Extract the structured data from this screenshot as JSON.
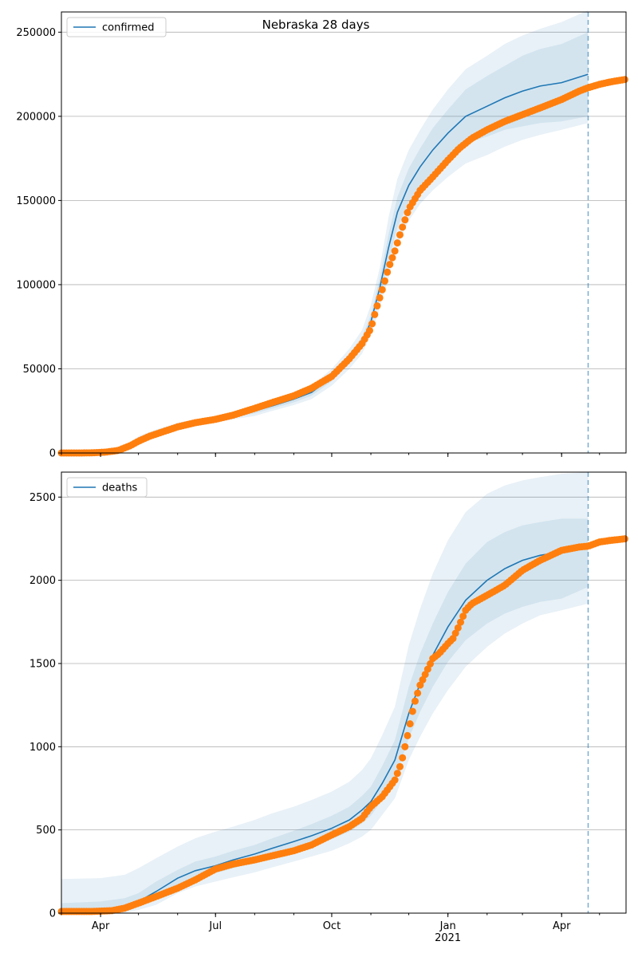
{
  "chart_data": [
    {
      "type": "line",
      "title": "Nebraska 28 days",
      "series": [
        {
          "name": "confirmed"
        }
      ],
      "forecast_marker_date": "2021-04-22",
      "xlim": [
        "2020-03-01",
        "2021-05-22"
      ],
      "ylim": [
        0,
        262000
      ],
      "yticks": [
        0,
        50000,
        100000,
        150000,
        200000,
        250000
      ],
      "ytick_labels": [
        "0",
        "50000",
        "100000",
        "150000",
        "200000",
        "250000"
      ],
      "xticks": [
        "2020-04-01",
        "2020-07-01",
        "2020-10-01",
        "2021-01-01",
        "2021-04-01"
      ],
      "xtick_labels": [
        "",
        "",
        "",
        "",
        ""
      ],
      "legend": "top-left",
      "grid": "y",
      "model_x": [
        "2020-03-01",
        "2020-03-20",
        "2020-04-01",
        "2020-04-10",
        "2020-04-20",
        "2020-05-01",
        "2020-05-15",
        "2020-06-01",
        "2020-06-15",
        "2020-07-01",
        "2020-07-15",
        "2020-08-01",
        "2020-08-15",
        "2020-09-01",
        "2020-09-15",
        "2020-10-01",
        "2020-10-15",
        "2020-10-25",
        "2020-11-01",
        "2020-11-08",
        "2020-11-15",
        "2020-11-22",
        "2020-12-01",
        "2020-12-10",
        "2020-12-20",
        "2021-01-01",
        "2021-01-15",
        "2021-02-01",
        "2021-02-15",
        "2021-03-01",
        "2021-03-15",
        "2021-04-01",
        "2021-04-22"
      ],
      "model_y": [
        0,
        0,
        200,
        800,
        2500,
        8000,
        12000,
        16000,
        18000,
        20000,
        22000,
        25000,
        28000,
        32000,
        36000,
        45000,
        56000,
        66000,
        78000,
        98000,
        122000,
        143000,
        159000,
        170000,
        180000,
        190000,
        200000,
        206000,
        211000,
        215000,
        218000,
        220000,
        225000
      ],
      "band_inner": [
        [
          0,
          0
        ],
        [
          0,
          0
        ],
        [
          100,
          300
        ],
        [
          600,
          1000
        ],
        [
          2000,
          3000
        ],
        [
          7000,
          9000
        ],
        [
          11000,
          13000
        ],
        [
          15000,
          17000
        ],
        [
          17000,
          19000
        ],
        [
          19000,
          21000
        ],
        [
          21000,
          23000
        ],
        [
          23500,
          26500
        ],
        [
          26500,
          29500
        ],
        [
          30000,
          34000
        ],
        [
          34000,
          38000
        ],
        [
          42500,
          47500
        ],
        [
          53000,
          59000
        ],
        [
          63000,
          69000
        ],
        [
          74000,
          82000
        ],
        [
          92000,
          104000
        ],
        [
          114000,
          130000
        ],
        [
          134000,
          152000
        ],
        [
          149000,
          169000
        ],
        [
          159000,
          181000
        ],
        [
          167000,
          193000
        ],
        [
          176000,
          204000
        ],
        [
          184000,
          216000
        ],
        [
          188000,
          224000
        ],
        [
          192000,
          230000
        ],
        [
          194000,
          236000
        ],
        [
          196000,
          240000
        ],
        [
          197000,
          243000
        ],
        [
          200000,
          250000
        ]
      ],
      "band_outer": [
        [
          0,
          0
        ],
        [
          0,
          0
        ],
        [
          0,
          500
        ],
        [
          400,
          1300
        ],
        [
          1500,
          3500
        ],
        [
          6000,
          10000
        ],
        [
          10000,
          14000
        ],
        [
          14000,
          18000
        ],
        [
          16000,
          20000
        ],
        [
          18000,
          22000
        ],
        [
          20000,
          24000
        ],
        [
          22000,
          28000
        ],
        [
          25000,
          31000
        ],
        [
          28500,
          35500
        ],
        [
          32000,
          40000
        ],
        [
          40000,
          50000
        ],
        [
          50000,
          62000
        ],
        [
          59000,
          73000
        ],
        [
          70000,
          88000
        ],
        [
          86000,
          110000
        ],
        [
          104000,
          140000
        ],
        [
          123000,
          163000
        ],
        [
          138000,
          180000
        ],
        [
          148000,
          192000
        ],
        [
          156000,
          204000
        ],
        [
          164000,
          216000
        ],
        [
          172000,
          228000
        ],
        [
          177000,
          236000
        ],
        [
          182000,
          243000
        ],
        [
          186000,
          248000
        ],
        [
          189000,
          252000
        ],
        [
          192000,
          256000
        ],
        [
          196000,
          263000
        ]
      ],
      "obs_x": [
        "2020-03-01",
        "2020-03-15",
        "2020-03-25",
        "2020-04-05",
        "2020-04-15",
        "2020-04-25",
        "2020-05-01",
        "2020-05-10",
        "2020-05-20",
        "2020-06-01",
        "2020-06-15",
        "2020-07-01",
        "2020-07-15",
        "2020-08-01",
        "2020-08-15",
        "2020-09-01",
        "2020-09-15",
        "2020-10-01",
        "2020-10-15",
        "2020-10-25",
        "2020-11-01",
        "2020-11-05",
        "2020-11-10",
        "2020-11-15",
        "2020-11-20",
        "2020-11-25",
        "2020-12-01",
        "2020-12-10",
        "2020-12-20",
        "2021-01-01",
        "2021-01-10",
        "2021-01-20",
        "2021-02-01",
        "2021-02-15",
        "2021-03-01",
        "2021-03-15",
        "2021-04-01",
        "2021-04-15",
        "2021-04-22",
        "2021-05-01",
        "2021-05-10",
        "2021-05-22"
      ],
      "obs_y": [
        0,
        0,
        100,
        500,
        1500,
        4500,
        7000,
        10000,
        12500,
        15500,
        18000,
        20000,
        22500,
        26500,
        30000,
        34000,
        38500,
        45500,
        56000,
        65000,
        74000,
        85000,
        97000,
        110000,
        120000,
        132000,
        145000,
        156000,
        164000,
        174000,
        181000,
        187000,
        192000,
        197000,
        201000,
        205000,
        210000,
        215000,
        217000,
        219000,
        220500,
        222000
      ]
    },
    {
      "type": "line",
      "title": "",
      "series": [
        {
          "name": "deaths"
        }
      ],
      "forecast_marker_date": "2021-04-22",
      "xlim": [
        "2020-03-01",
        "2021-05-22"
      ],
      "ylim": [
        0,
        2650
      ],
      "yticks": [
        0,
        500,
        1000,
        1500,
        2000,
        2500
      ],
      "ytick_labels": [
        "0",
        "500",
        "1000",
        "1500",
        "2000",
        "2500"
      ],
      "xticks": [
        "2020-04-01",
        "2020-07-01",
        "2020-10-01",
        "2021-01-01",
        "2021-04-01"
      ],
      "xtick_labels": [
        "Apr",
        "Jul",
        "Oct",
        "Jan\n2021",
        "Apr"
      ],
      "legend": "top-left",
      "grid": "y",
      "model_x": [
        "2020-03-01",
        "2020-04-01",
        "2020-04-20",
        "2020-05-01",
        "2020-05-15",
        "2020-06-01",
        "2020-06-15",
        "2020-07-01",
        "2020-07-15",
        "2020-08-01",
        "2020-08-15",
        "2020-09-01",
        "2020-09-15",
        "2020-10-01",
        "2020-10-15",
        "2020-10-25",
        "2020-11-01",
        "2020-11-10",
        "2020-11-20",
        "2020-12-01",
        "2020-12-10",
        "2020-12-20",
        "2021-01-01",
        "2021-01-15",
        "2021-02-01",
        "2021-02-15",
        "2021-03-01",
        "2021-03-15",
        "2021-04-01",
        "2021-04-22"
      ],
      "model_y": [
        0,
        5,
        20,
        70,
        130,
        210,
        255,
        285,
        320,
        355,
        390,
        430,
        465,
        510,
        560,
        620,
        670,
        780,
        920,
        1200,
        1380,
        1550,
        1720,
        1880,
        2000,
        2070,
        2120,
        2150,
        2170,
        2200
      ],
      "band_inner": [
        [
          0,
          60
        ],
        [
          0,
          70
        ],
        [
          5,
          90
        ],
        [
          40,
          120
        ],
        [
          90,
          190
        ],
        [
          170,
          260
        ],
        [
          210,
          310
        ],
        [
          240,
          340
        ],
        [
          270,
          375
        ],
        [
          305,
          410
        ],
        [
          335,
          450
        ],
        [
          375,
          495
        ],
        [
          405,
          535
        ],
        [
          445,
          585
        ],
        [
          490,
          640
        ],
        [
          540,
          705
        ],
        [
          585,
          760
        ],
        [
          680,
          885
        ],
        [
          800,
          1040
        ],
        [
          1050,
          1360
        ],
        [
          1210,
          1560
        ],
        [
          1360,
          1740
        ],
        [
          1510,
          1930
        ],
        [
          1640,
          2100
        ],
        [
          1740,
          2230
        ],
        [
          1800,
          2290
        ],
        [
          1840,
          2330
        ],
        [
          1870,
          2350
        ],
        [
          1890,
          2370
        ],
        [
          1960,
          2370
        ]
      ],
      "band_outer": [
        [
          0,
          205
        ],
        [
          0,
          210
        ],
        [
          0,
          230
        ],
        [
          20,
          270
        ],
        [
          50,
          330
        ],
        [
          120,
          400
        ],
        [
          160,
          450
        ],
        [
          190,
          490
        ],
        [
          215,
          520
        ],
        [
          245,
          560
        ],
        [
          275,
          600
        ],
        [
          310,
          640
        ],
        [
          340,
          680
        ],
        [
          375,
          730
        ],
        [
          420,
          790
        ],
        [
          460,
          860
        ],
        [
          500,
          930
        ],
        [
          590,
          1070
        ],
        [
          690,
          1240
        ],
        [
          920,
          1610
        ],
        [
          1060,
          1830
        ],
        [
          1200,
          2040
        ],
        [
          1340,
          2240
        ],
        [
          1480,
          2410
        ],
        [
          1600,
          2520
        ],
        [
          1680,
          2570
        ],
        [
          1740,
          2600
        ],
        [
          1790,
          2620
        ],
        [
          1820,
          2640
        ],
        [
          1860,
          2650
        ]
      ],
      "obs_x": [
        "2020-03-01",
        "2020-03-25",
        "2020-04-10",
        "2020-04-20",
        "2020-05-01",
        "2020-05-15",
        "2020-06-01",
        "2020-06-15",
        "2020-07-01",
        "2020-07-15",
        "2020-08-01",
        "2020-08-15",
        "2020-09-01",
        "2020-09-15",
        "2020-10-01",
        "2020-10-15",
        "2020-10-25",
        "2020-11-01",
        "2020-11-10",
        "2020-11-20",
        "2020-11-25",
        "2020-12-01",
        "2020-12-05",
        "2020-12-10",
        "2020-12-15",
        "2020-12-20",
        "2020-12-25",
        "2021-01-01",
        "2021-01-05",
        "2021-01-10",
        "2021-01-15",
        "2021-01-20",
        "2021-02-01",
        "2021-02-15",
        "2021-03-01",
        "2021-03-15",
        "2021-04-01",
        "2021-04-15",
        "2021-04-22",
        "2021-05-01",
        "2021-05-10",
        "2021-05-22"
      ],
      "obs_y": [
        10,
        10,
        15,
        30,
        60,
        100,
        150,
        200,
        265,
        295,
        320,
        345,
        375,
        410,
        470,
        520,
        570,
        640,
        700,
        800,
        900,
        1100,
        1250,
        1370,
        1450,
        1530,
        1560,
        1620,
        1650,
        1730,
        1820,
        1860,
        1910,
        1970,
        2060,
        2120,
        2180,
        2200,
        2205,
        2230,
        2240,
        2250
      ]
    }
  ]
}
